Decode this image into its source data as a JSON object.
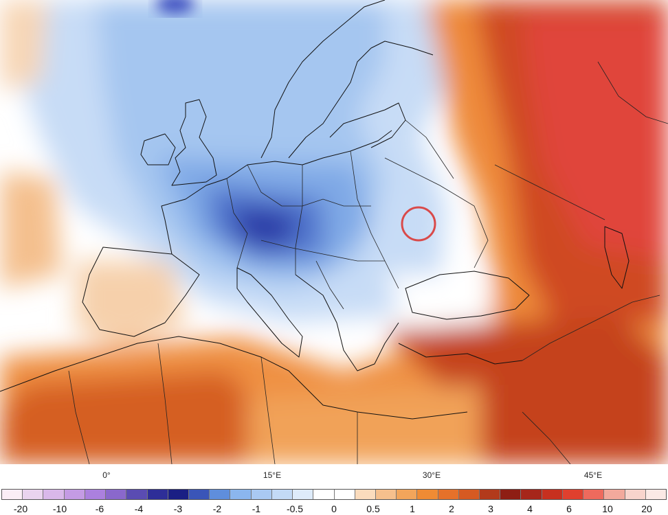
{
  "map": {
    "longitude_labels": [
      {
        "text": "0°",
        "lon": 0
      },
      {
        "text": "15°E",
        "lon": 15
      },
      {
        "text": "30°E",
        "lon": 30
      },
      {
        "text": "45°E",
        "lon": 45
      }
    ],
    "highlight_marker": {
      "color": "#d94a4a",
      "lon": 28.5,
      "lat": 49.0
    }
  },
  "colorbar": {
    "swatch_colors": [
      "#fbeef6",
      "#ead4ef",
      "#d9b8ea",
      "#c49be4",
      "#ab80de",
      "#8a68cc",
      "#5a4cb2",
      "#2e2e98",
      "#1a1f84",
      "#3a55b8",
      "#5f8edc",
      "#8bb6ee",
      "#a9c9f2",
      "#c3daf6",
      "#deebfa",
      "#ffffff",
      "#ffffff",
      "#fbdcbd",
      "#f6c08d",
      "#f2a55b",
      "#ef8b34",
      "#e5712a",
      "#d65a22",
      "#b23a1b",
      "#8e1e14",
      "#a6261a",
      "#c7301f",
      "#e0402e",
      "#ee6a5d",
      "#f2a99c",
      "#f8d4cc",
      "#fbe9e5"
    ],
    "tick_labels": [
      "-20",
      "-10",
      "-6",
      "-4",
      "-3",
      "-2",
      "-1",
      "-0.5",
      "0",
      "0.5",
      "1",
      "2",
      "3",
      "4",
      "6",
      "10",
      "20"
    ]
  }
}
